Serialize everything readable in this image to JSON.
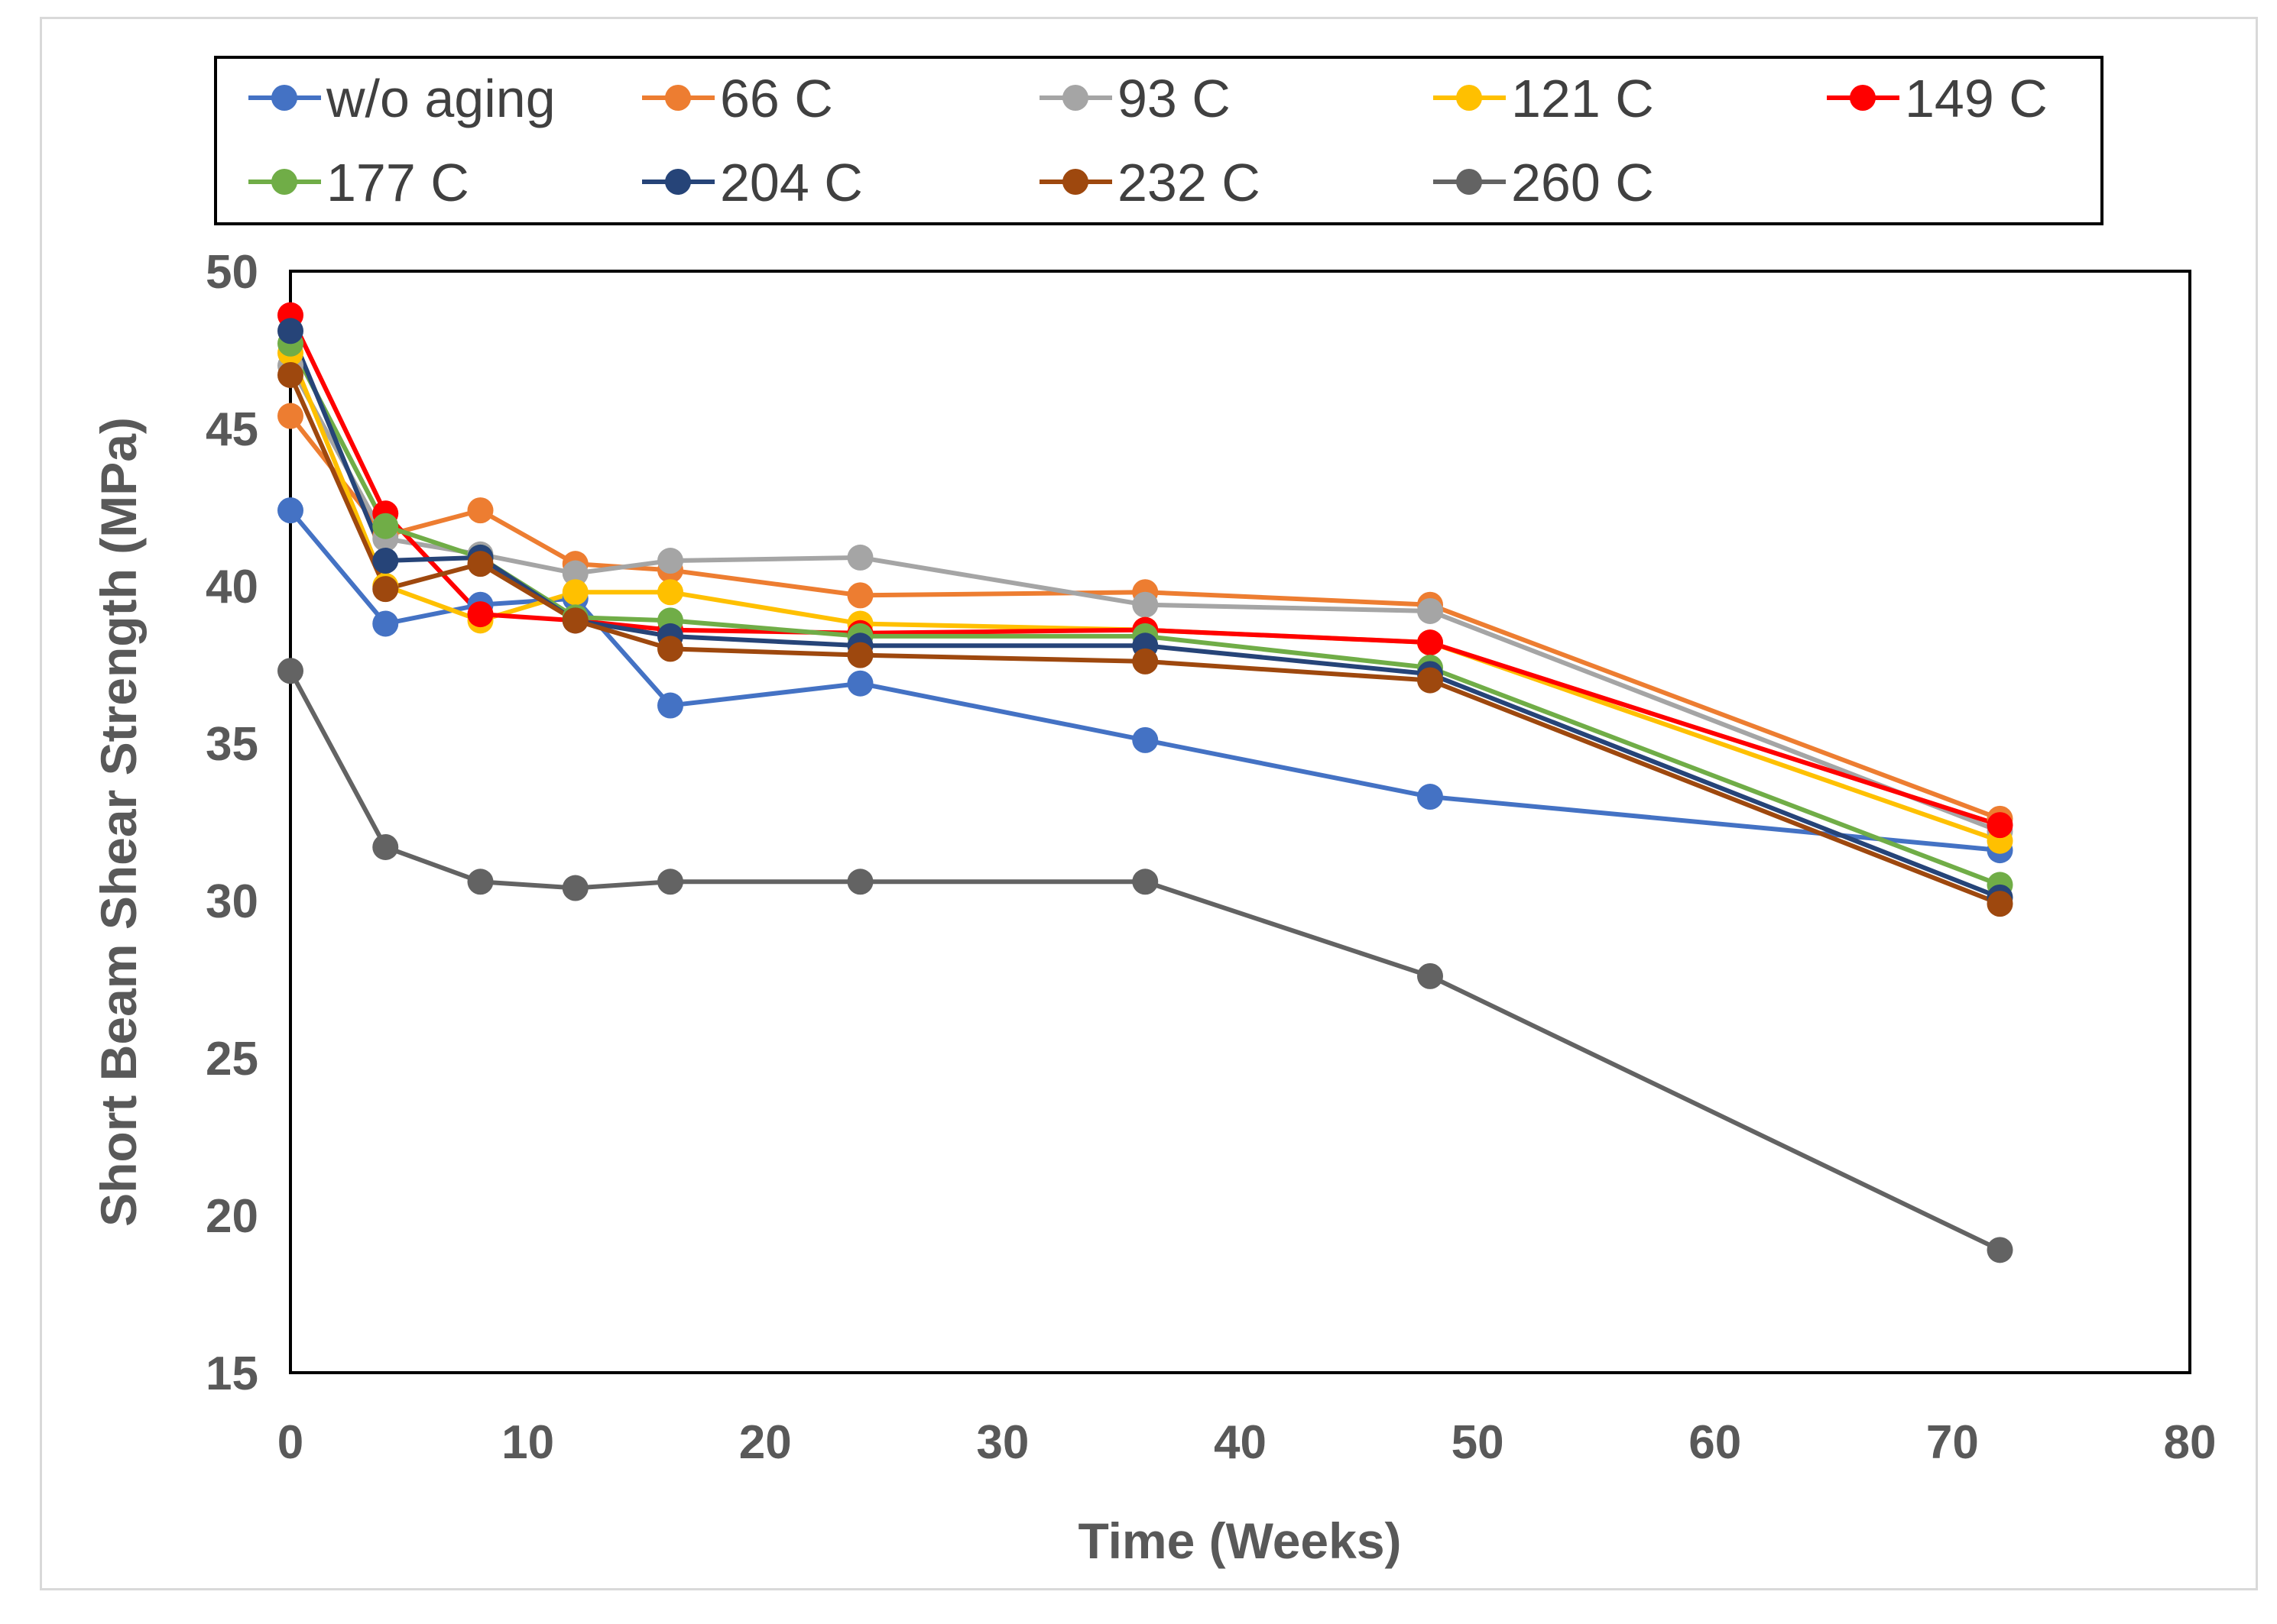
{
  "chart_data": {
    "type": "line",
    "title": "",
    "xlabel": "Time (Weeks)",
    "ylabel": "Short Beam Shear Strength (MPa)",
    "xlim": [
      0,
      80
    ],
    "ylim": [
      15,
      50
    ],
    "x_ticks": [
      "0",
      "10",
      "20",
      "30",
      "40",
      "50",
      "60",
      "70",
      "80"
    ],
    "y_ticks": [
      "15",
      "20",
      "25",
      "30",
      "35",
      "40",
      "45",
      "50"
    ],
    "grid": false,
    "legend_position": "top",
    "x": [
      0,
      4,
      8,
      12,
      16,
      24,
      36,
      48,
      72
    ],
    "series": [
      {
        "name": "w/o aging",
        "color": "#4472c4",
        "values": [
          42.4,
          38.8,
          39.4,
          39.6,
          36.2,
          36.9,
          35.1,
          33.3,
          31.6
        ]
      },
      {
        "name": "66 C",
        "color": "#ed7d31",
        "values": [
          45.4,
          41.6,
          42.4,
          40.7,
          40.5,
          39.7,
          39.8,
          39.4,
          32.6
        ]
      },
      {
        "name": "93 C",
        "color": "#a5a5a5",
        "values": [
          47.0,
          41.5,
          41.0,
          40.4,
          40.8,
          40.9,
          39.4,
          39.2,
          32.2
        ]
      },
      {
        "name": "121 C",
        "color": "#ffc000",
        "values": [
          47.4,
          40.0,
          38.9,
          39.8,
          39.8,
          38.8,
          38.6,
          38.2,
          31.9
        ]
      },
      {
        "name": "149 C",
        "color": "#ff0000",
        "values": [
          48.6,
          42.3,
          39.1,
          38.9,
          38.6,
          38.5,
          38.6,
          38.2,
          32.4
        ]
      },
      {
        "name": "177 C",
        "color": "#70ad47",
        "values": [
          47.7,
          41.9,
          40.9,
          39.0,
          38.9,
          38.4,
          38.4,
          37.4,
          30.5
        ]
      },
      {
        "name": "204 C",
        "color": "#264478",
        "values": [
          48.1,
          40.8,
          40.9,
          38.9,
          38.4,
          38.1,
          38.1,
          37.2,
          30.1
        ]
      },
      {
        "name": "232 C",
        "color": "#9e480e",
        "values": [
          46.7,
          39.9,
          40.7,
          38.9,
          38.0,
          37.8,
          37.6,
          37.0,
          29.9
        ]
      },
      {
        "name": "260 C",
        "color": "#636363",
        "values": [
          37.3,
          31.7,
          30.6,
          30.4,
          30.6,
          30.6,
          30.6,
          27.6,
          18.9
        ]
      }
    ]
  }
}
